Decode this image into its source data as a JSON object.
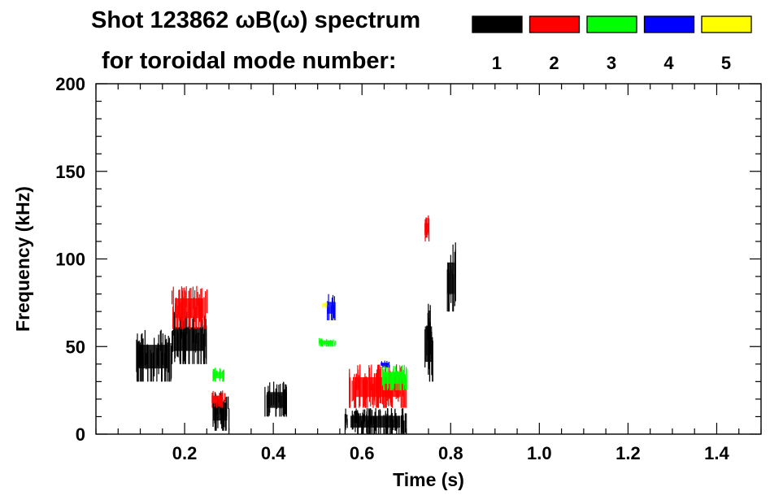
{
  "header": {
    "title_line1": "Shot 123862 ωB(ω) spectrum",
    "title_line2": "for toroidal mode number:"
  },
  "chart_data": {
    "type": "heatmap",
    "title": "Shot 123862 ωB(ω) spectrum",
    "subtitle": "for toroidal mode number:",
    "xlabel": "Time (s)",
    "ylabel": "Frequency (kHz)",
    "xlim": [
      0.0,
      1.5
    ],
    "ylim": [
      0,
      200
    ],
    "xticks": [
      0.2,
      0.4,
      0.6,
      0.8,
      1.0,
      1.2,
      1.4
    ],
    "xtick_labels": [
      "0.2",
      "0.4",
      "0.6",
      "0.8",
      "1.0",
      "1.2",
      "1.4"
    ],
    "yticks": [
      0,
      50,
      100,
      150,
      200
    ],
    "ytick_labels": [
      "0",
      "50",
      "100",
      "150",
      "200"
    ],
    "grid": false,
    "legend": {
      "placement": "top-right",
      "entries": [
        {
          "label": "1",
          "color": "#000000"
        },
        {
          "label": "2",
          "color": "#ff0000"
        },
        {
          "label": "3",
          "color": "#00ff00"
        },
        {
          "label": "4",
          "color": "#0000ff"
        },
        {
          "label": "5",
          "color": "#ffff00"
        }
      ]
    },
    "series": [
      {
        "name": "1",
        "color": "#000000",
        "regions": [
          {
            "t": [
              0.09,
              0.17
            ],
            "f": [
              30,
              60
            ]
          },
          {
            "t": [
              0.17,
              0.25
            ],
            "f": [
              40,
              70
            ]
          },
          {
            "t": [
              0.26,
              0.3
            ],
            "f": [
              2,
              25
            ]
          },
          {
            "t": [
              0.38,
              0.43
            ],
            "f": [
              10,
              30
            ]
          },
          {
            "t": [
              0.56,
              0.7
            ],
            "f": [
              0,
              15
            ]
          },
          {
            "t": [
              0.74,
              0.76
            ],
            "f": [
              30,
              75
            ]
          },
          {
            "t": [
              0.79,
              0.81
            ],
            "f": [
              70,
              110
            ]
          }
        ]
      },
      {
        "name": "2",
        "color": "#ff0000",
        "regions": [
          {
            "t": [
              0.17,
              0.25
            ],
            "f": [
              60,
              85
            ]
          },
          {
            "t": [
              0.26,
              0.29
            ],
            "f": [
              15,
              25
            ]
          },
          {
            "t": [
              0.57,
              0.7
            ],
            "f": [
              15,
              40
            ]
          },
          {
            "t": [
              0.74,
              0.75
            ],
            "f": [
              110,
              125
            ]
          }
        ]
      },
      {
        "name": "3",
        "color": "#00ff00",
        "regions": [
          {
            "t": [
              0.26,
              0.29
            ],
            "f": [
              30,
              38
            ]
          },
          {
            "t": [
              0.5,
              0.54
            ],
            "f": [
              50,
              55
            ]
          },
          {
            "t": [
              0.64,
              0.7
            ],
            "f": [
              25,
              40
            ]
          }
        ]
      },
      {
        "name": "4",
        "color": "#0000ff",
        "regions": [
          {
            "t": [
              0.52,
              0.54
            ],
            "f": [
              65,
              80
            ]
          },
          {
            "t": [
              0.64,
              0.66
            ],
            "f": [
              38,
              42
            ]
          }
        ]
      },
      {
        "name": "5",
        "color": "#ffff00",
        "regions": [
          {
            "t": [
              0.51,
              0.52
            ],
            "f": [
              72,
              76
            ]
          }
        ]
      }
    ]
  }
}
